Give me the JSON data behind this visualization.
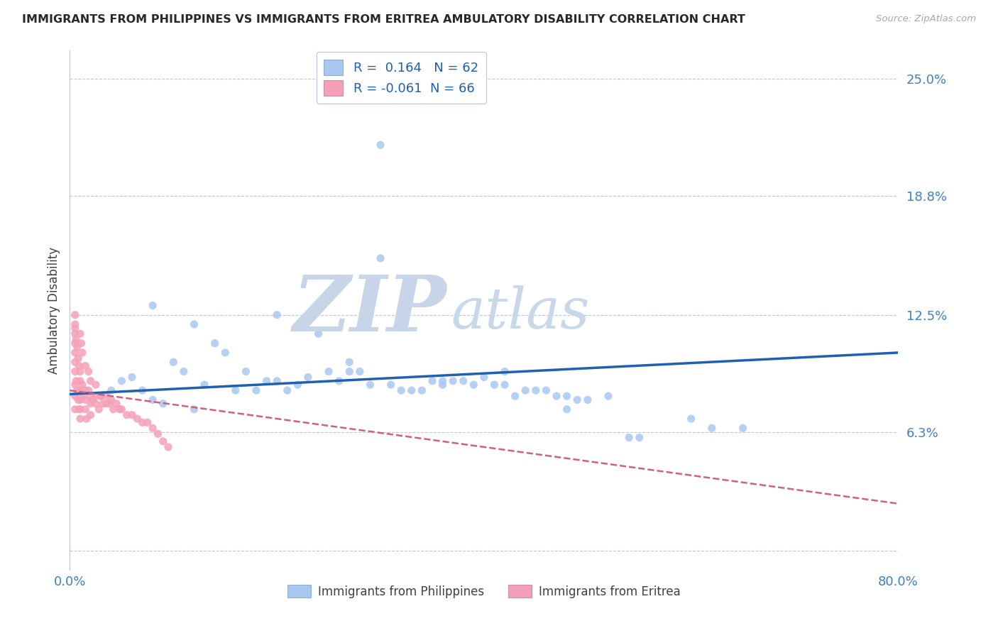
{
  "title": "IMMIGRANTS FROM PHILIPPINES VS IMMIGRANTS FROM ERITREA AMBULATORY DISABILITY CORRELATION CHART",
  "source": "Source: ZipAtlas.com",
  "ylabel": "Ambulatory Disability",
  "xlim": [
    0.0,
    0.8
  ],
  "ylim": [
    -0.01,
    0.265
  ],
  "ytick_vals": [
    0.0,
    0.063,
    0.125,
    0.188,
    0.25
  ],
  "ytick_labels": [
    "",
    "6.3%",
    "12.5%",
    "18.8%",
    "25.0%"
  ],
  "xtick_vals": [
    0.0,
    0.8
  ],
  "xtick_labels": [
    "0.0%",
    "80.0%"
  ],
  "blue_R": "0.164",
  "blue_N": "62",
  "pink_R": "-0.061",
  "pink_N": "66",
  "blue_color": "#a8c8f0",
  "pink_color": "#f4a0b8",
  "blue_line_color": "#2060b0",
  "pink_line_color": "#d06080",
  "bg_color": "#ffffff",
  "grid_color": "#c0c4d8",
  "title_color": "#282828",
  "source_color": "#a0a8b8",
  "axis_label_color": "#4080c0",
  "watermark_zip_color": "#c8d4e8",
  "watermark_atlas_color": "#c8d8e8",
  "legend_label_blue": "Immigrants from Philippines",
  "legend_label_pink": "Immigrants from Eritrea",
  "blue_trend_x": [
    0.0,
    0.8
  ],
  "blue_trend_y": [
    0.083,
    0.105
  ],
  "pink_trend_x": [
    0.0,
    0.8
  ],
  "pink_trend_y": [
    0.085,
    0.025
  ],
  "blue_scatter_x": [
    0.3,
    0.05,
    0.1,
    0.15,
    0.08,
    0.12,
    0.2,
    0.25,
    0.18,
    0.22,
    0.28,
    0.35,
    0.32,
    0.38,
    0.4,
    0.42,
    0.45,
    0.48,
    0.5,
    0.52,
    0.04,
    0.06,
    0.09,
    0.11,
    0.13,
    0.16,
    0.19,
    0.23,
    0.27,
    0.31,
    0.34,
    0.37,
    0.41,
    0.44,
    0.47,
    0.03,
    0.07,
    0.14,
    0.21,
    0.26,
    0.29,
    0.33,
    0.36,
    0.39,
    0.43,
    0.46,
    0.49,
    0.55,
    0.6,
    0.65,
    0.08,
    0.12,
    0.17,
    0.24,
    0.3,
    0.36,
    0.42,
    0.48,
    0.54,
    0.62,
    0.2,
    0.27
  ],
  "blue_scatter_y": [
    0.215,
    0.09,
    0.1,
    0.105,
    0.08,
    0.075,
    0.09,
    0.095,
    0.085,
    0.088,
    0.095,
    0.09,
    0.085,
    0.09,
    0.092,
    0.088,
    0.085,
    0.082,
    0.08,
    0.082,
    0.085,
    0.092,
    0.078,
    0.095,
    0.088,
    0.085,
    0.09,
    0.092,
    0.095,
    0.088,
    0.085,
    0.09,
    0.088,
    0.085,
    0.082,
    0.082,
    0.085,
    0.11,
    0.085,
    0.09,
    0.088,
    0.085,
    0.09,
    0.088,
    0.082,
    0.085,
    0.08,
    0.06,
    0.07,
    0.065,
    0.13,
    0.12,
    0.095,
    0.115,
    0.155,
    0.088,
    0.095,
    0.075,
    0.06,
    0.065,
    0.125,
    0.1
  ],
  "pink_scatter_x": [
    0.005,
    0.005,
    0.005,
    0.005,
    0.005,
    0.005,
    0.005,
    0.005,
    0.006,
    0.007,
    0.008,
    0.009,
    0.01,
    0.01,
    0.01,
    0.01,
    0.01,
    0.01,
    0.012,
    0.013,
    0.015,
    0.015,
    0.015,
    0.016,
    0.018,
    0.02,
    0.02,
    0.02,
    0.022,
    0.025,
    0.025,
    0.028,
    0.03,
    0.032,
    0.035,
    0.038,
    0.04,
    0.042,
    0.045,
    0.048,
    0.05,
    0.055,
    0.06,
    0.065,
    0.07,
    0.075,
    0.08,
    0.085,
    0.09,
    0.095,
    0.005,
    0.005,
    0.005,
    0.006,
    0.007,
    0.008,
    0.009,
    0.01,
    0.011,
    0.012,
    0.015,
    0.018,
    0.02,
    0.025,
    0.03,
    0.035
  ],
  "pink_scatter_y": [
    0.095,
    0.1,
    0.105,
    0.11,
    0.115,
    0.088,
    0.082,
    0.075,
    0.09,
    0.085,
    0.08,
    0.075,
    0.09,
    0.085,
    0.08,
    0.075,
    0.07,
    0.095,
    0.088,
    0.082,
    0.085,
    0.08,
    0.075,
    0.07,
    0.085,
    0.082,
    0.078,
    0.072,
    0.08,
    0.082,
    0.078,
    0.075,
    0.082,
    0.078,
    0.082,
    0.078,
    0.08,
    0.075,
    0.078,
    0.075,
    0.075,
    0.072,
    0.072,
    0.07,
    0.068,
    0.068,
    0.065,
    0.062,
    0.058,
    0.055,
    0.12,
    0.118,
    0.125,
    0.112,
    0.108,
    0.102,
    0.098,
    0.115,
    0.11,
    0.105,
    0.098,
    0.095,
    0.09,
    0.088,
    0.082,
    0.078
  ]
}
